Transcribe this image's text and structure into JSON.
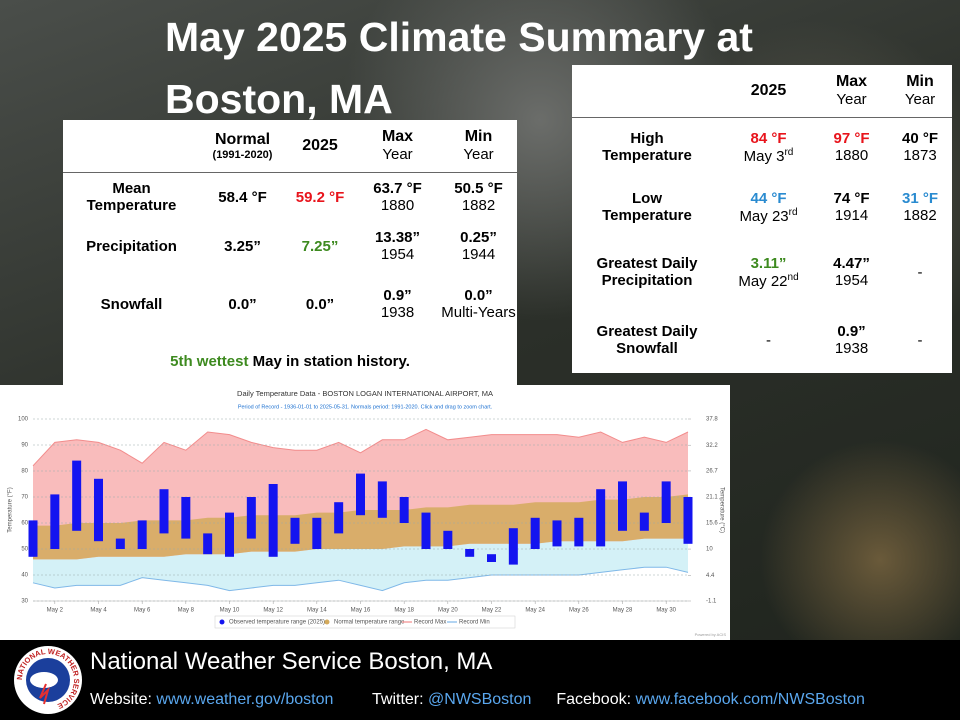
{
  "header": {
    "title": "May 2025 Climate Summary at Boston, MA"
  },
  "monthly_table": {
    "columns": [
      {
        "label": "Normal",
        "sub": "(1991-2020)"
      },
      {
        "label": "2025"
      },
      {
        "label": "Max",
        "sub": "Year"
      },
      {
        "label": "Min",
        "sub": "Year"
      }
    ],
    "rows": [
      {
        "label": "Mean Temperature",
        "cells": [
          {
            "text": "58.4 °F"
          },
          {
            "text": "59.2 °F",
            "color": "#e8141c"
          },
          {
            "text": "63.7 °F",
            "sub": "1880"
          },
          {
            "text": "50.5 °F",
            "sub": "1882"
          }
        ]
      },
      {
        "label": "Precipitation",
        "cells": [
          {
            "text": "3.25”"
          },
          {
            "text": "7.25”",
            "color": "#3d8a1f"
          },
          {
            "text": "13.38”",
            "sub": "1954"
          },
          {
            "text": "0.25”",
            "sub": "1944"
          }
        ]
      },
      {
        "label": "Snowfall",
        "cells": [
          {
            "text": "0.0”"
          },
          {
            "text": "0.0”"
          },
          {
            "text": "0.9”",
            "sub": "1938"
          },
          {
            "text": "0.0”",
            "sub": "Multi-Years"
          }
        ]
      }
    ],
    "note": {
      "highlight": "5th wettest",
      "color": "#3d8a1f",
      "rest": " May in station history."
    }
  },
  "daily_table": {
    "columns": [
      {
        "label": "2025"
      },
      {
        "label": "Max",
        "sub": "Year"
      },
      {
        "label": "Min",
        "sub": "Year"
      }
    ],
    "rows": [
      {
        "label": "High Temperature",
        "cells": [
          {
            "text": "84 °F",
            "color": "#e8141c",
            "sub": "May 3",
            "sup": "rd"
          },
          {
            "text": "97 °F",
            "color": "#e8141c",
            "sub": "1880"
          },
          {
            "text": "40 °F",
            "sub": "1873"
          }
        ]
      },
      {
        "label": "Low Temperature",
        "cells": [
          {
            "text": "44 °F",
            "color": "#2a8bd0",
            "sub": "May 23",
            "sup": "rd"
          },
          {
            "text": "74 °F",
            "sub": "1914"
          },
          {
            "text": "31 °F",
            "color": "#2a8bd0",
            "sub": "1882"
          }
        ]
      },
      {
        "label": "Greatest Daily Precipitation",
        "cells": [
          {
            "text": "3.11”",
            "color": "#3d8a1f",
            "sub": "May 22",
            "sup": "nd"
          },
          {
            "text": "4.47”",
            "sub": "1954"
          },
          {
            "text": "-",
            "plain": true
          }
        ]
      },
      {
        "label": "Greatest Daily Snowfall",
        "cells": [
          {
            "text": "-",
            "plain": true
          },
          {
            "text": "0.9”",
            "sub": "1938"
          },
          {
            "text": "-",
            "plain": true
          }
        ]
      }
    ]
  },
  "chart_data": {
    "type": "range_bar",
    "title": "Daily Temperature Data - BOSTON LOGAN INTERNATIONAL AIRPORT, MA",
    "subtitle": "Period of Record - 1936-01-01 to 2025-05-31. Normals period: 1991-2020. Click and drag to zoom chart.",
    "y_label": "Temperature (°F)",
    "y2_label": "Temperature (°C)",
    "credit": "Powered by ACIS",
    "categories": [
      null,
      "May 2",
      null,
      "May 4",
      null,
      "May 6",
      null,
      "May 8",
      null,
      "May 10",
      null,
      "May 12",
      null,
      "May 14",
      null,
      "May 16",
      null,
      "May 18",
      null,
      "May 20",
      null,
      "May 22",
      null,
      "May 24",
      null,
      "May 26",
      null,
      "May 28",
      null,
      "May 30",
      null
    ],
    "ylim": [
      30,
      100
    ],
    "yticks": [
      30,
      40,
      50,
      60,
      70,
      80,
      90,
      100
    ],
    "y2lim": [
      -1.1,
      37.8
    ],
    "y2ticks": [
      -1.1,
      4.4,
      10,
      15.6,
      21.1,
      26.7,
      32.2,
      37.8
    ],
    "grid": true,
    "series": [
      {
        "name": "Observed temperature range (2025)",
        "color": "#1414f0",
        "values": [
          [
            47,
            61
          ],
          [
            50,
            71
          ],
          [
            57,
            84
          ],
          [
            53,
            77
          ],
          [
            50,
            54
          ],
          [
            50,
            61
          ],
          [
            56,
            73
          ],
          [
            54,
            70
          ],
          [
            48,
            56
          ],
          [
            47,
            64
          ],
          [
            54,
            70
          ],
          [
            47,
            75
          ],
          [
            52,
            62
          ],
          [
            50,
            62
          ],
          [
            56,
            68
          ],
          [
            63,
            79
          ],
          [
            62,
            76
          ],
          [
            60,
            70
          ],
          [
            50,
            64
          ],
          [
            50,
            57
          ],
          [
            47,
            50
          ],
          [
            45,
            48
          ],
          [
            44,
            58
          ],
          [
            50,
            62
          ],
          [
            51,
            61
          ],
          [
            51,
            62
          ],
          [
            51,
            73
          ],
          [
            57,
            76
          ],
          [
            57,
            64
          ],
          [
            60,
            76
          ],
          [
            52,
            70
          ]
        ]
      },
      {
        "name": "Normal temperature range",
        "color": "#d4aa5c",
        "values": [
          [
            46,
            59
          ],
          [
            46,
            59
          ],
          [
            46,
            60
          ],
          [
            47,
            60
          ],
          [
            47,
            60
          ],
          [
            47,
            61
          ],
          [
            47,
            61
          ],
          [
            48,
            61
          ],
          [
            48,
            62
          ],
          [
            48,
            62
          ],
          [
            49,
            63
          ],
          [
            49,
            63
          ],
          [
            49,
            63
          ],
          [
            50,
            64
          ],
          [
            50,
            64
          ],
          [
            50,
            65
          ],
          [
            50,
            65
          ],
          [
            51,
            65
          ],
          [
            51,
            66
          ],
          [
            51,
            66
          ],
          [
            52,
            67
          ],
          [
            52,
            67
          ],
          [
            52,
            67
          ],
          [
            52,
            68
          ],
          [
            53,
            68
          ],
          [
            53,
            68
          ],
          [
            53,
            69
          ],
          [
            53,
            69
          ],
          [
            54,
            70
          ],
          [
            54,
            70
          ],
          [
            54,
            71
          ]
        ]
      },
      {
        "name": "Record Max",
        "color": "#f28c8c",
        "values": [
          82,
          91,
          92,
          91,
          88,
          83,
          91,
          88,
          95,
          94,
          91,
          89,
          88,
          88,
          91,
          87,
          92,
          92,
          96,
          92,
          93,
          94,
          94,
          94,
          94,
          93,
          95,
          91,
          93,
          91,
          95
        ]
      },
      {
        "name": "Record Min",
        "color": "#7fb8e8",
        "values": [
          37,
          35,
          36,
          36,
          36,
          39,
          38,
          37,
          36,
          34,
          35,
          36,
          36,
          37,
          38,
          36,
          34,
          37,
          38,
          38,
          39,
          40,
          40,
          40,
          40,
          40,
          41,
          42,
          43,
          43,
          41
        ]
      }
    ]
  },
  "footer": {
    "org": "National Weather Service Boston, MA",
    "logo_text": "NATIONAL WEATHER SERVICE",
    "website_label": "Website:",
    "website": "www.weather.gov/boston",
    "twitter_label": "Twitter:",
    "twitter": "@NWSBoston",
    "facebook_label": "Facebook:",
    "facebook": "www.facebook.com/NWSBoston"
  }
}
